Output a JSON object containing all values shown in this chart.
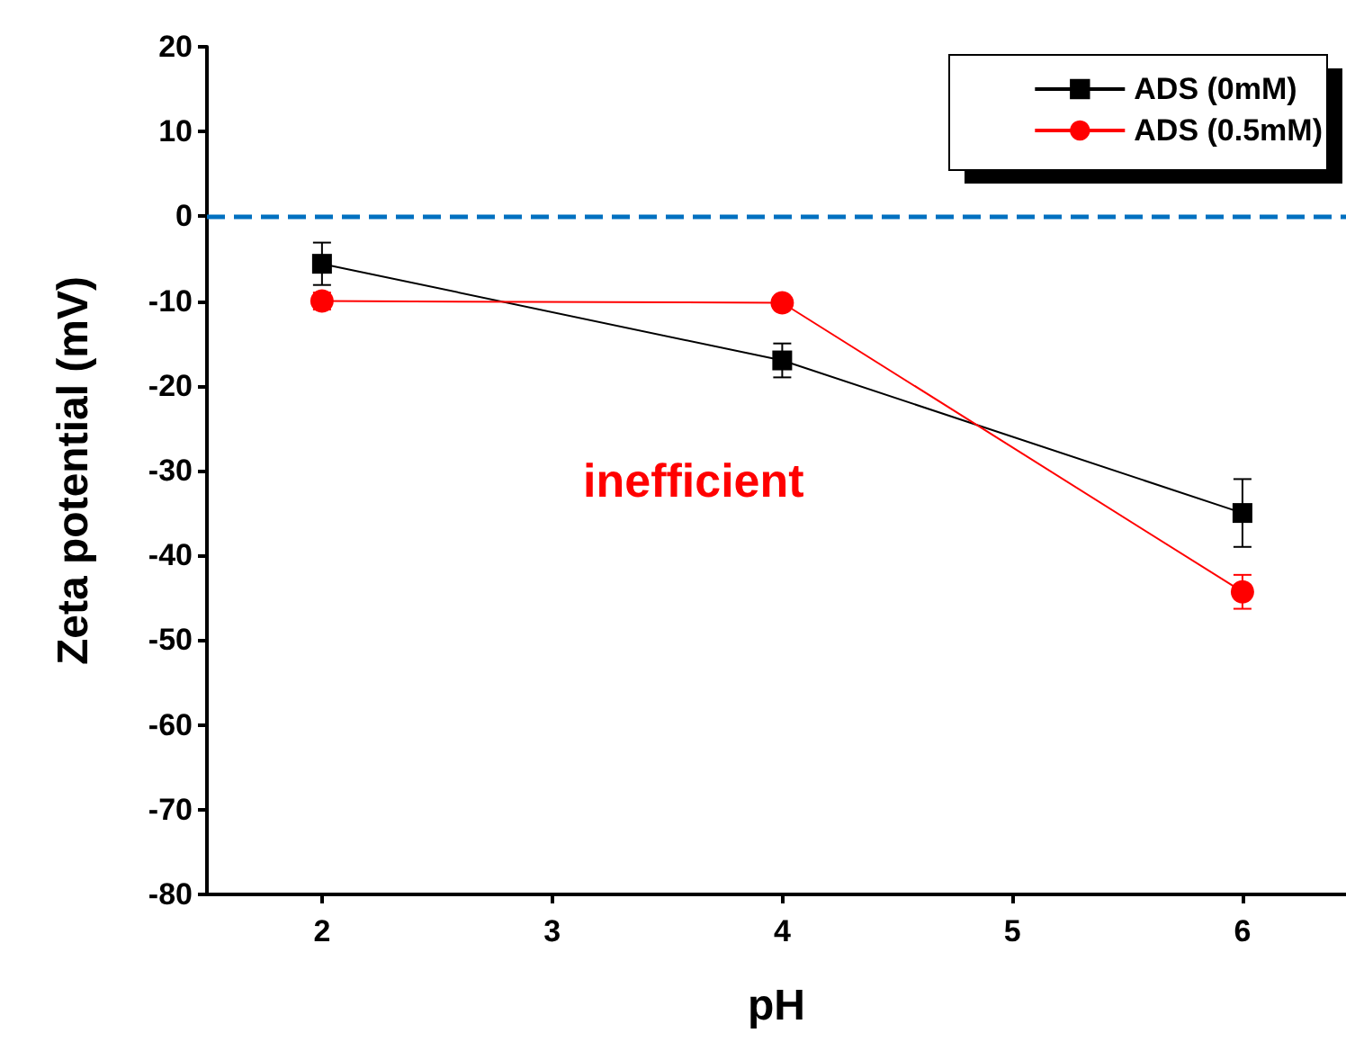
{
  "chart_data": {
    "type": "line",
    "xlabel": "pH",
    "ylabel": "Zeta potential (mV)",
    "x": [
      2,
      4,
      6
    ],
    "series": [
      {
        "name": "ADS (0mM)",
        "color": "#000000",
        "marker": "square",
        "values": [
          -5.6,
          -17,
          -35
        ],
        "errors": [
          2.5,
          2,
          4
        ]
      },
      {
        "name": "ADS (0.5mM)",
        "color": "#ff0000",
        "marker": "circle",
        "values": [
          -10,
          -10.2,
          -44.3
        ],
        "errors": [
          1,
          null,
          2
        ]
      }
    ],
    "xlim": [
      1.5,
      6.45
    ],
    "xticks": [
      2,
      3,
      4,
      5,
      6
    ],
    "ylim": [
      -80,
      20
    ],
    "yticks": [
      -80,
      -70,
      -60,
      -50,
      -40,
      -30,
      -20,
      -10,
      0,
      10,
      20
    ],
    "ref_lines": [
      {
        "axis": "y",
        "value": 0,
        "color": "#0070c0",
        "line_style": "dashed"
      }
    ],
    "annotations": [
      "inefficient"
    ],
    "legend": "top right",
    "grid": false,
    "line_style": "solid"
  }
}
